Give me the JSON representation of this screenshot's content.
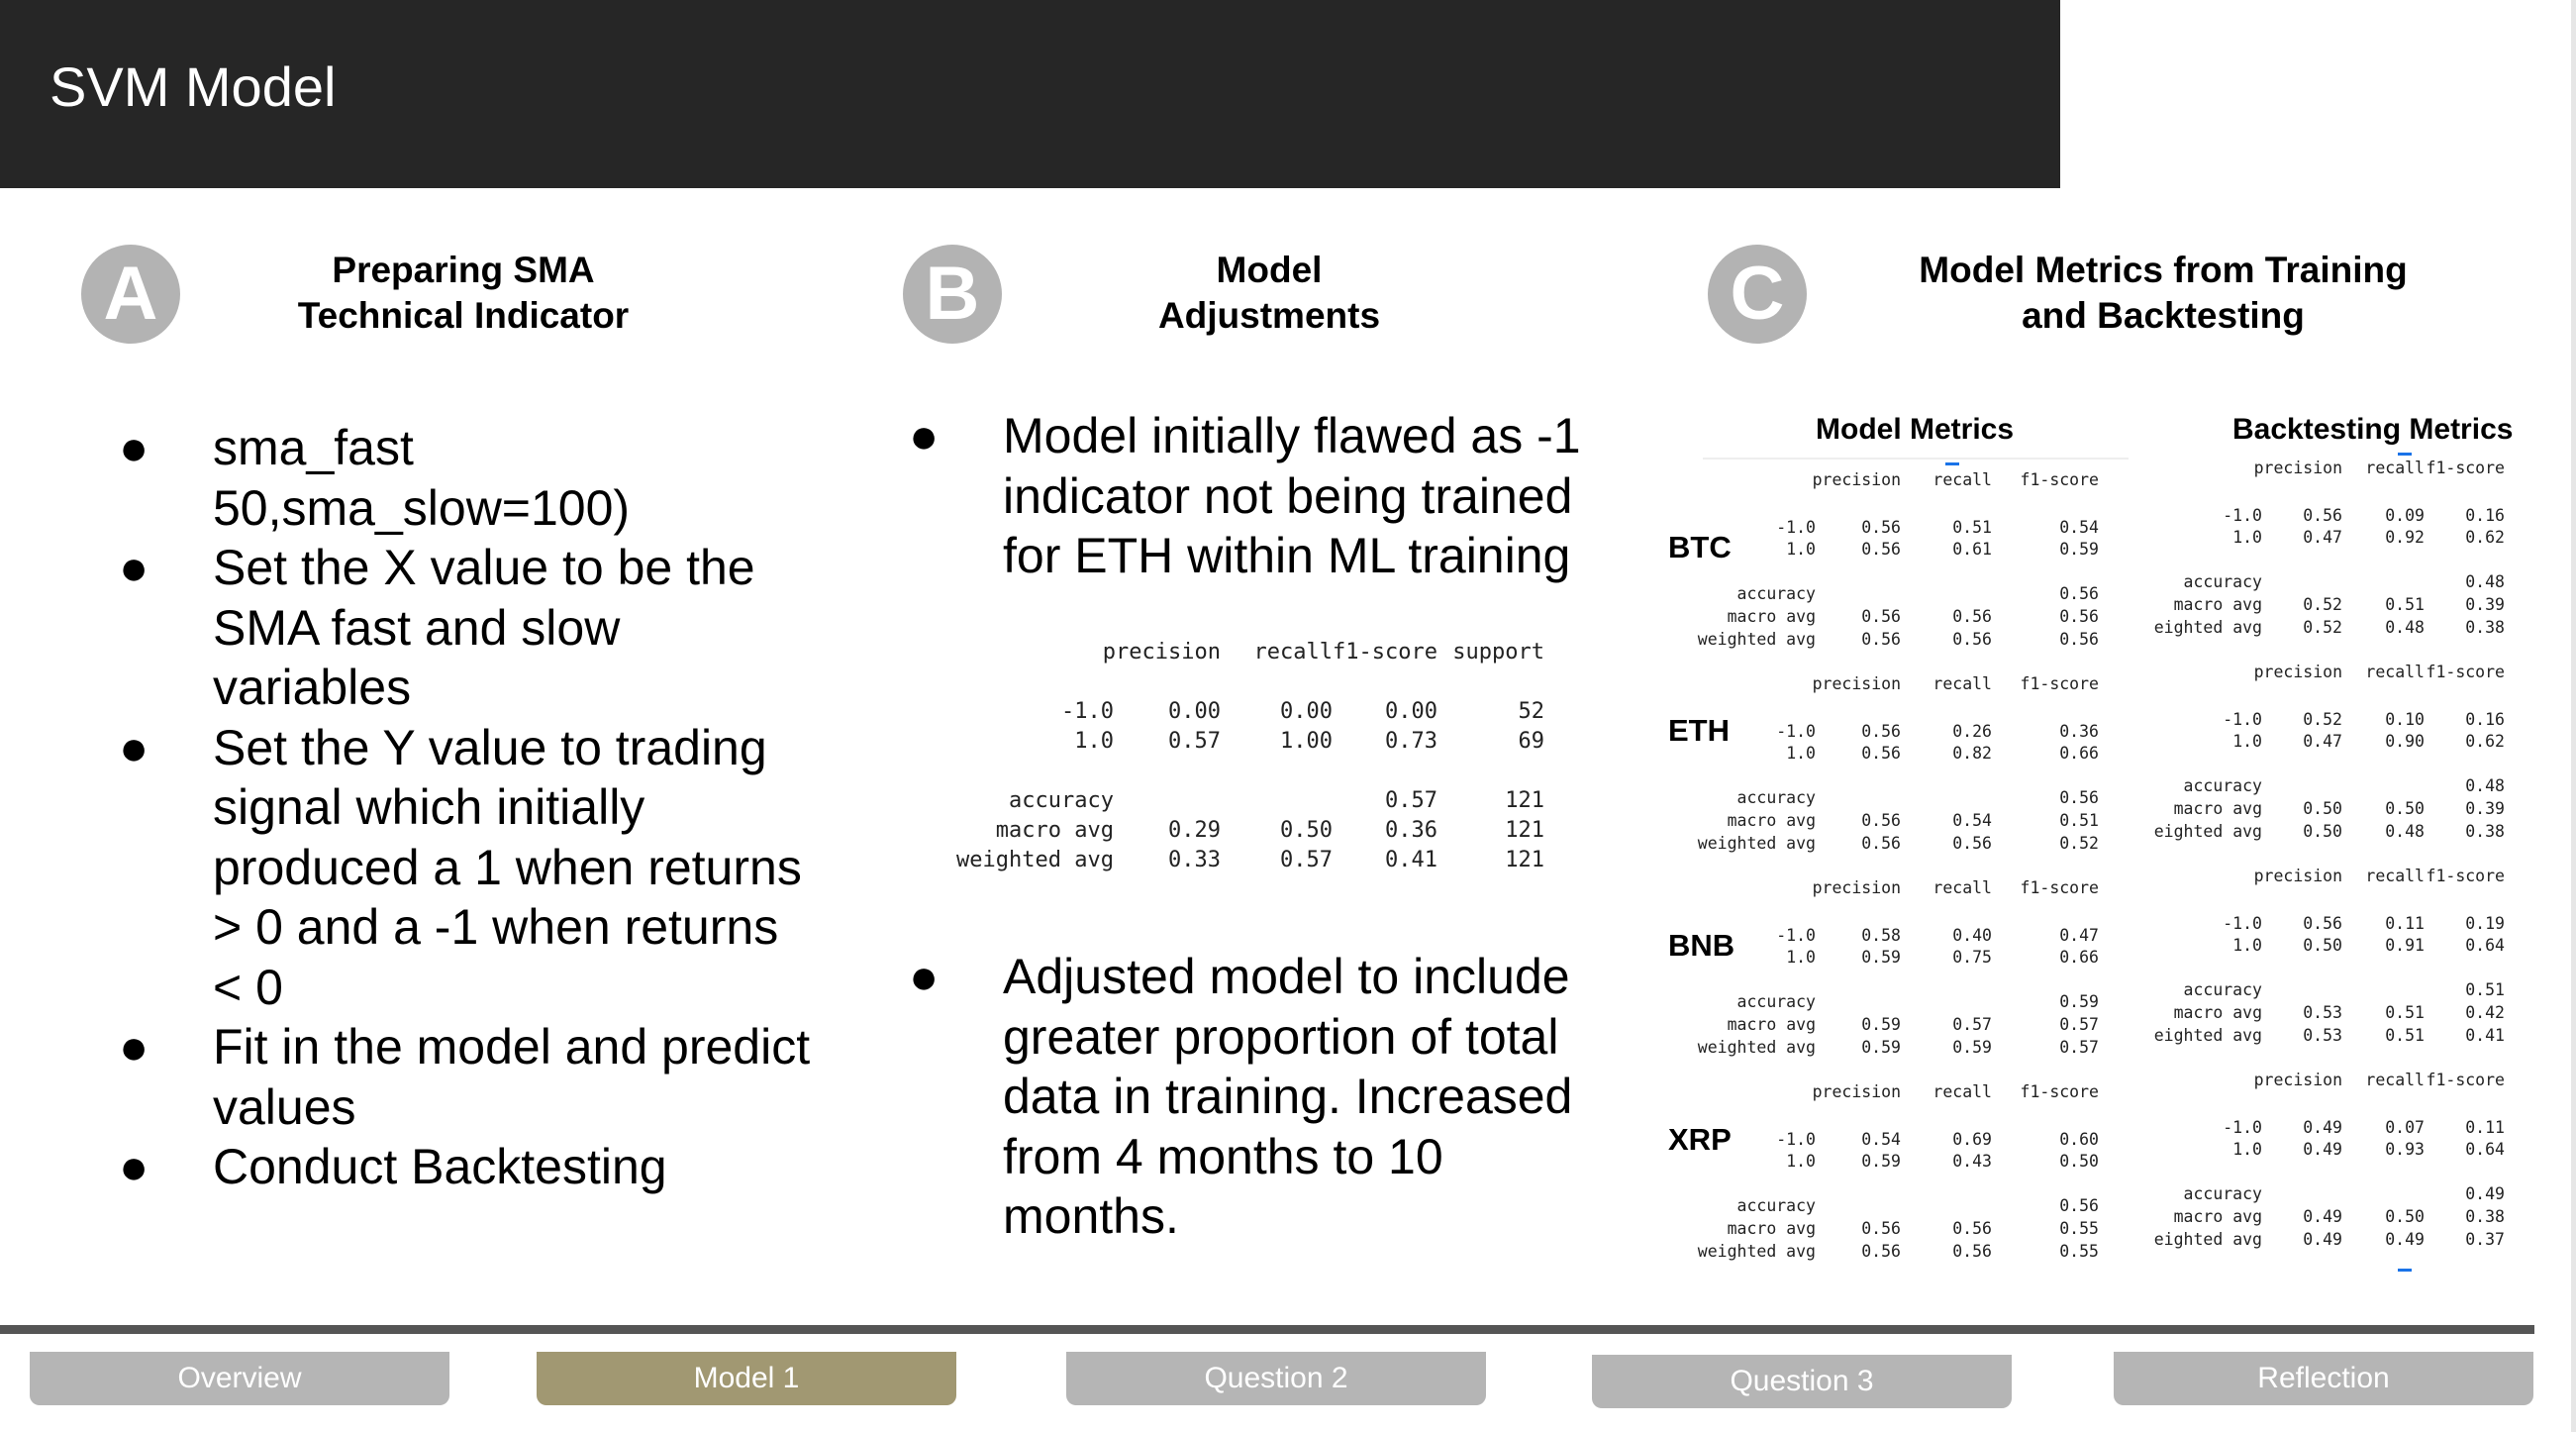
{
  "slide": {
    "title": "SVM Model"
  },
  "sections": [
    {
      "letter": "A",
      "heading_lines": [
        "Preparing SMA",
        "Technical Indicator"
      ]
    },
    {
      "letter": "B",
      "heading_lines": [
        "Model",
        "Adjustments"
      ]
    },
    {
      "letter": "C",
      "heading_lines": [
        "Model Metrics from Training",
        "and Backtesting"
      ]
    }
  ],
  "bullet_glyph": "●",
  "section_a_bullets": [
    [
      "sma_fast",
      "50,sma_slow=100)"
    ],
    [
      "Set the X value to be the",
      "SMA fast and slow",
      "variables"
    ],
    [
      "Set the Y value to trading",
      "signal which initially",
      "produced a 1 when returns",
      "> 0 and a -1 when returns",
      "< 0"
    ],
    [
      "Fit in the model and predict",
      "values"
    ],
    [
      "Conduct Backtesting"
    ]
  ],
  "section_b_bullets": [
    [
      "Model initially flawed as -1",
      "indicator not being trained",
      "for ETH within ML training"
    ],
    [
      "Adjusted model to include",
      "greater proportion of total",
      "data in training. Increased",
      "from 4 months to 10",
      "months."
    ]
  ],
  "classification_report": {
    "headers": [
      "precision",
      "recall",
      "f1-score",
      "support"
    ],
    "rows": [
      [
        "-1.0",
        "0.00",
        "0.00",
        "0.00",
        "52"
      ],
      [
        "1.0",
        "0.57",
        "1.00",
        "0.73",
        "69"
      ],
      [
        "accuracy",
        "",
        "",
        "0.57",
        "121"
      ],
      [
        "macro avg",
        "0.29",
        "0.50",
        "0.36",
        "121"
      ],
      [
        "weighted avg",
        "0.33",
        "0.57",
        "0.41",
        "121"
      ]
    ]
  },
  "metrics": {
    "model_heading": "Model Metrics",
    "backtest_heading": "Backtesting Metrics",
    "headers": [
      "precision",
      "recall",
      "f1-score"
    ],
    "coins": [
      {
        "name": "BTC",
        "model": [
          [
            "-1.0",
            "0.56",
            "0.51",
            "0.54"
          ],
          [
            "1.0",
            "0.56",
            "0.61",
            "0.59"
          ],
          [
            "accuracy",
            "",
            "",
            "0.56"
          ],
          [
            "macro avg",
            "0.56",
            "0.56",
            "0.56"
          ],
          [
            "weighted avg",
            "0.56",
            "0.56",
            "0.56"
          ]
        ],
        "backtest": [
          [
            "-1.0",
            "0.56",
            "0.09",
            "0.16"
          ],
          [
            "1.0",
            "0.47",
            "0.92",
            "0.62"
          ],
          [
            "accuracy",
            "",
            "",
            "0.48"
          ],
          [
            "macro avg",
            "0.52",
            "0.51",
            "0.39"
          ],
          [
            "eighted avg",
            "0.52",
            "0.48",
            "0.38"
          ]
        ]
      },
      {
        "name": "ETH",
        "model": [
          [
            "-1.0",
            "0.56",
            "0.26",
            "0.36"
          ],
          [
            "1.0",
            "0.56",
            "0.82",
            "0.66"
          ],
          [
            "accuracy",
            "",
            "",
            "0.56"
          ],
          [
            "macro avg",
            "0.56",
            "0.54",
            "0.51"
          ],
          [
            "weighted avg",
            "0.56",
            "0.56",
            "0.52"
          ]
        ],
        "backtest": [
          [
            "-1.0",
            "0.52",
            "0.10",
            "0.16"
          ],
          [
            "1.0",
            "0.47",
            "0.90",
            "0.62"
          ],
          [
            "accuracy",
            "",
            "",
            "0.48"
          ],
          [
            "macro avg",
            "0.50",
            "0.50",
            "0.39"
          ],
          [
            "eighted avg",
            "0.50",
            "0.48",
            "0.38"
          ]
        ]
      },
      {
        "name": "BNB",
        "model": [
          [
            "-1.0",
            "0.58",
            "0.40",
            "0.47"
          ],
          [
            "1.0",
            "0.59",
            "0.75",
            "0.66"
          ],
          [
            "accuracy",
            "",
            "",
            "0.59"
          ],
          [
            "macro avg",
            "0.59",
            "0.57",
            "0.57"
          ],
          [
            "weighted avg",
            "0.59",
            "0.59",
            "0.57"
          ]
        ],
        "backtest": [
          [
            "-1.0",
            "0.56",
            "0.11",
            "0.19"
          ],
          [
            "1.0",
            "0.50",
            "0.91",
            "0.64"
          ],
          [
            "accuracy",
            "",
            "",
            "0.51"
          ],
          [
            "macro avg",
            "0.53",
            "0.51",
            "0.42"
          ],
          [
            "eighted avg",
            "0.53",
            "0.51",
            "0.41"
          ]
        ]
      },
      {
        "name": "XRP",
        "model": [
          [
            "-1.0",
            "0.54",
            "0.69",
            "0.60"
          ],
          [
            "1.0",
            "0.59",
            "0.43",
            "0.50"
          ],
          [
            "accuracy",
            "",
            "",
            "0.56"
          ],
          [
            "macro avg",
            "0.56",
            "0.56",
            "0.55"
          ],
          [
            "weighted avg",
            "0.56",
            "0.56",
            "0.55"
          ]
        ],
        "backtest": [
          [
            "-1.0",
            "0.49",
            "0.07",
            "0.11"
          ],
          [
            "1.0",
            "0.49",
            "0.93",
            "0.64"
          ],
          [
            "accuracy",
            "",
            "",
            "0.49"
          ],
          [
            "macro avg",
            "0.49",
            "0.50",
            "0.38"
          ],
          [
            "eighted avg",
            "0.49",
            "0.49",
            "0.37"
          ]
        ]
      }
    ]
  },
  "nav": {
    "tabs": [
      "Overview",
      "Model 1",
      "Question 2",
      "Question 3",
      "Reflection"
    ],
    "active_index": 1
  },
  "colors": {
    "title_bar": "#262626",
    "badge": "#b3b3b3",
    "tab": "#b5b5b5",
    "tab_active": "#a19872"
  }
}
